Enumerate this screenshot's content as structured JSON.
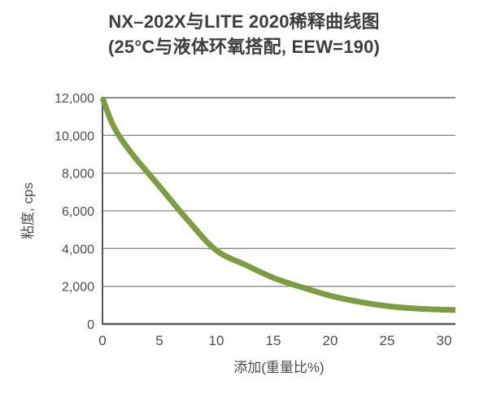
{
  "title": {
    "line1": "NX–202X与LITE 2020稀释曲线图",
    "line2": "(25°C与液体环氧搭配, EEW=190)"
  },
  "colors": {
    "background": "#ffffff",
    "title_text": "#3d3d3d",
    "axis_text": "#4d4d4d",
    "grid": "#8a8a8a",
    "axis_line": "#595959",
    "curve_green": "#7d9d3e"
  },
  "chart_data": {
    "type": "line",
    "title": "NX–202X与LITE 2020稀释曲线图",
    "subtitle": "(25°C与液体环氧搭配, EEW=190)",
    "xlabel": "添加(重量比%)",
    "ylabel": "粘度, cps",
    "x": [
      0,
      1,
      2.5,
      5,
      7.5,
      10,
      12.5,
      15,
      17.5,
      20,
      22.5,
      25,
      27.5,
      30,
      31
    ],
    "values": [
      12000,
      10450,
      9100,
      7300,
      5500,
      3900,
      3150,
      2450,
      1950,
      1500,
      1180,
      950,
      820,
      755,
      740
    ],
    "xlim": [
      0,
      31
    ],
    "ylim": [
      0,
      12000
    ],
    "x_ticks": [
      0,
      5,
      10,
      15,
      20,
      25,
      30
    ],
    "y_ticks": [
      0,
      2000,
      4000,
      6000,
      8000,
      10000,
      12000
    ],
    "grid": "horizontal",
    "legend": "none",
    "line_color": "#7d9d3e",
    "line_width": 7
  }
}
